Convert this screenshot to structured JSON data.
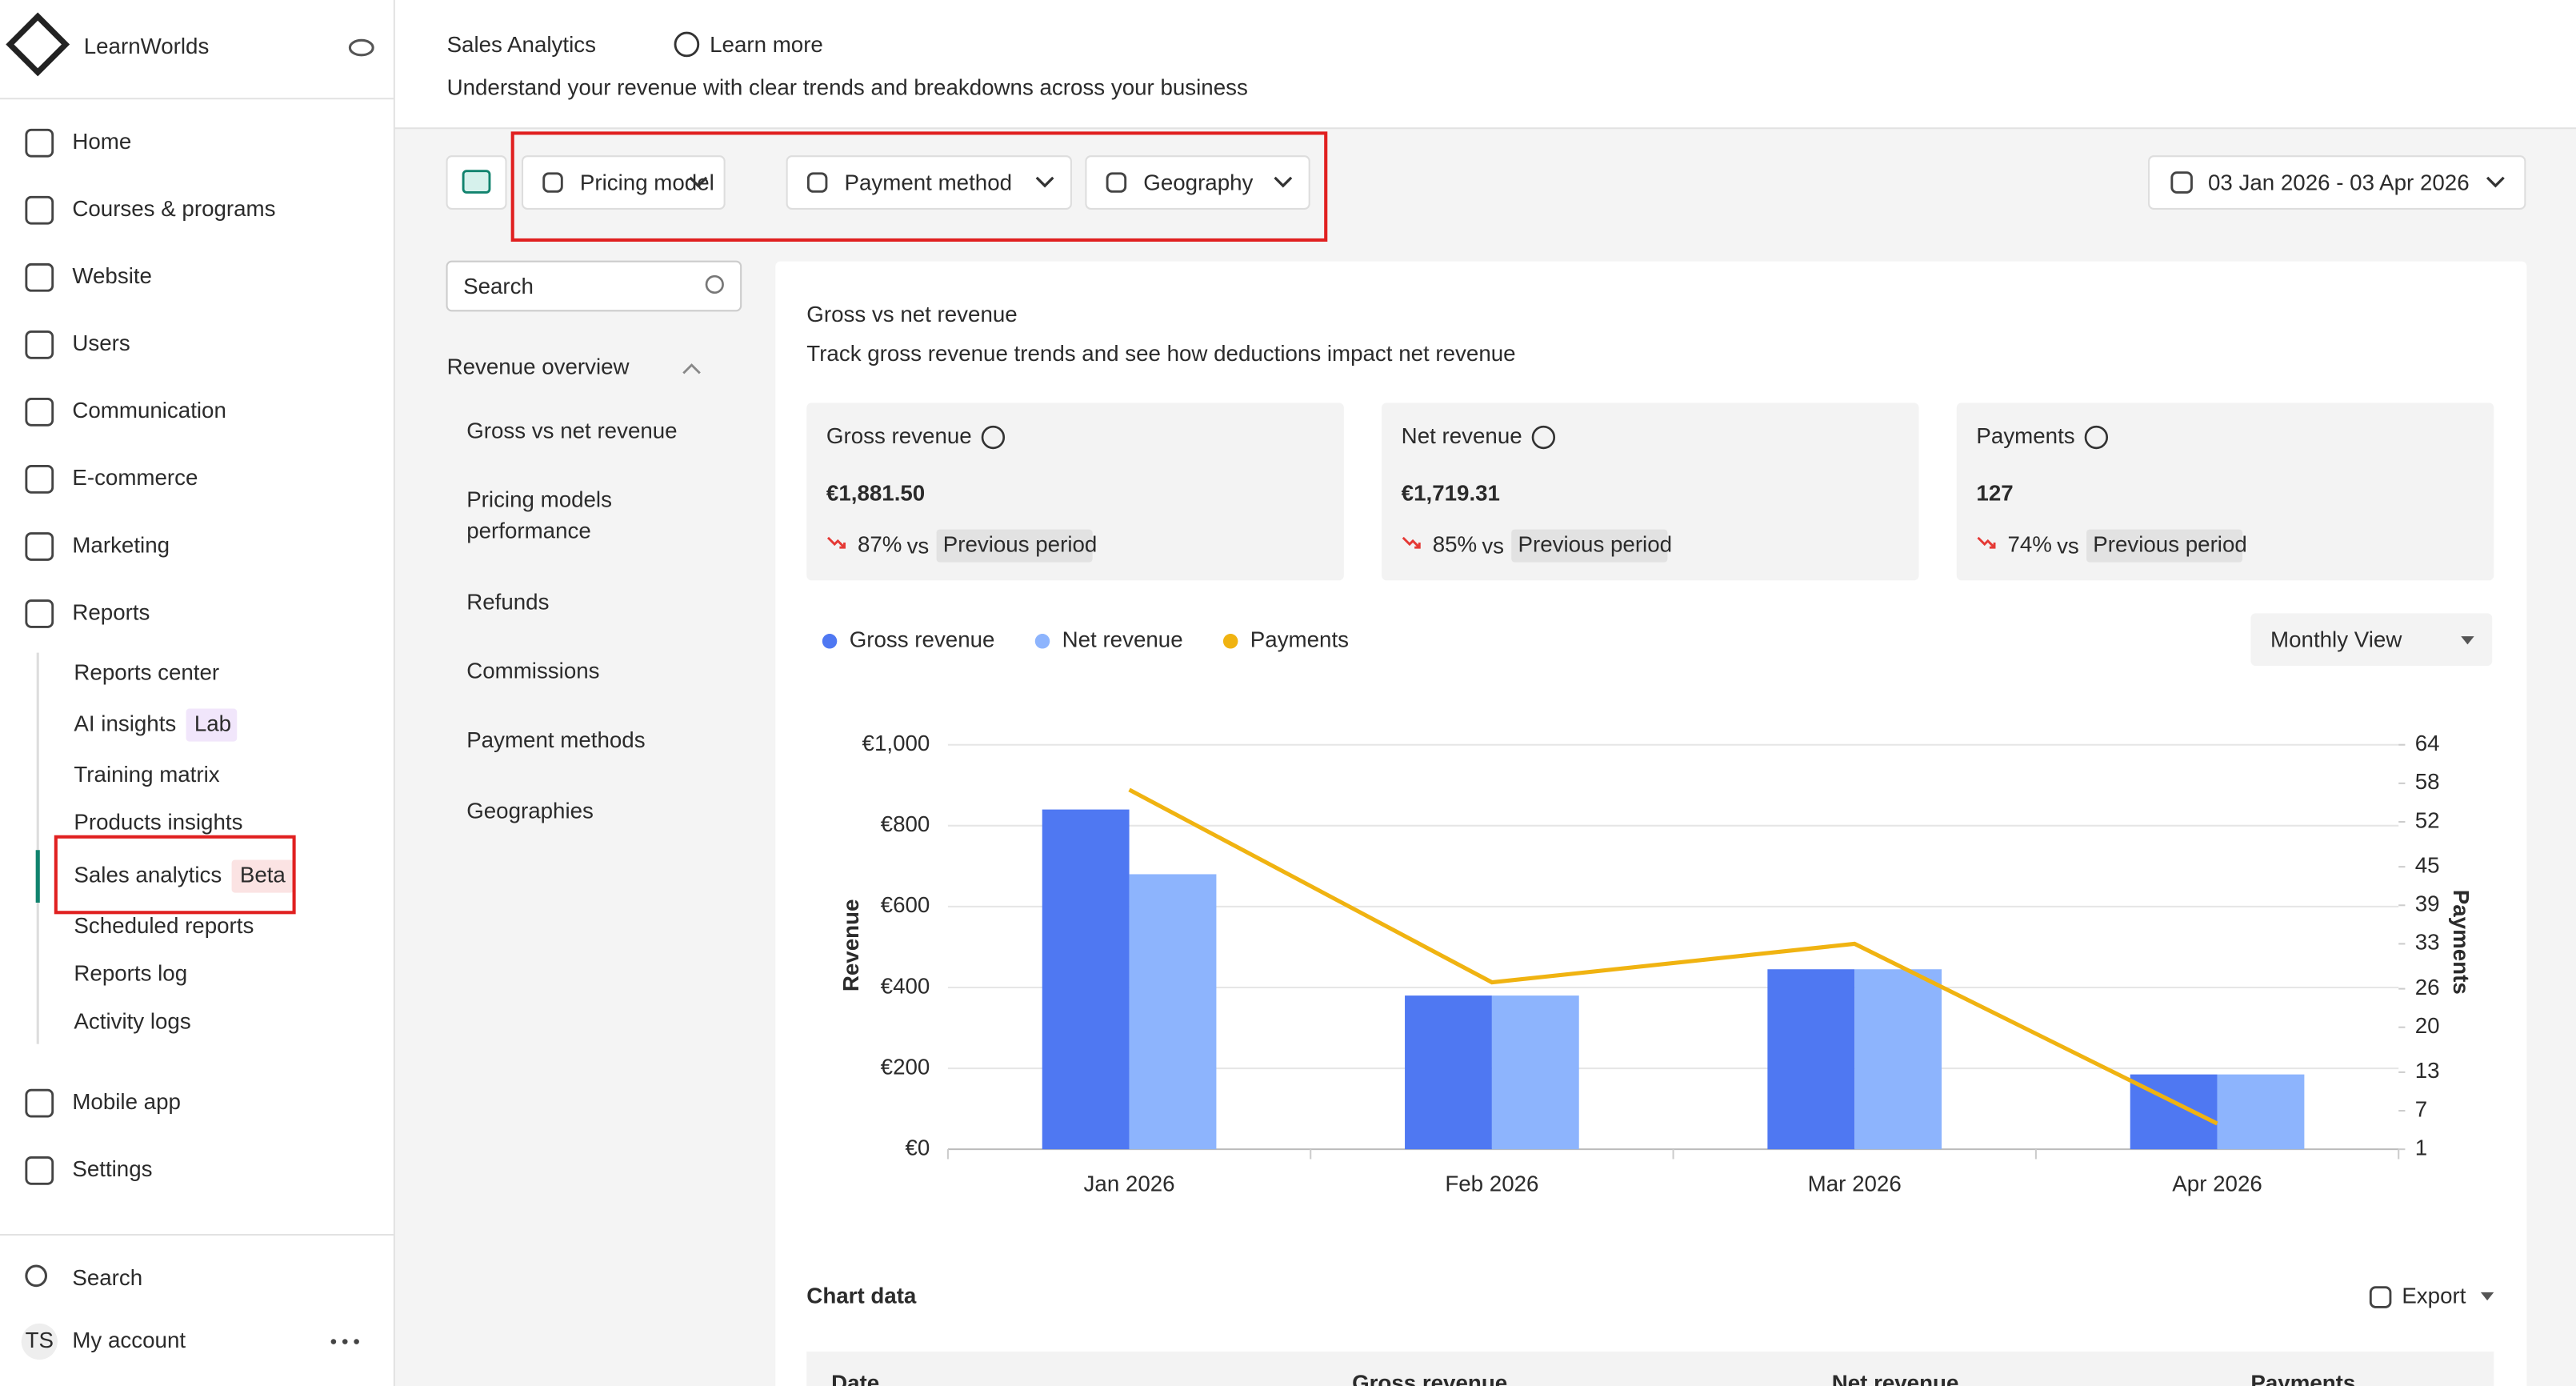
{
  "sidebar": {
    "brand": "LearnWorlds",
    "nav": [
      "Home",
      "Courses & programs",
      "Website",
      "Users",
      "Communication",
      "E-commerce",
      "Marketing",
      "Reports"
    ],
    "reports_sub": [
      {
        "label": "Reports center"
      },
      {
        "label": "AI insights",
        "badge": "Lab"
      },
      {
        "label": "Training matrix"
      },
      {
        "label": "Products insights"
      },
      {
        "label": "Sales analytics",
        "badge": "Beta"
      },
      {
        "label": "Scheduled reports"
      },
      {
        "label": "Reports log"
      },
      {
        "label": "Activity logs"
      }
    ],
    "bottom_nav": [
      "Mobile app",
      "Settings"
    ],
    "footer": [
      "Search",
      "My account"
    ],
    "avatar": "TS"
  },
  "header": {
    "title": "Sales Analytics",
    "learn_more": "Learn more",
    "subtitle": "Understand your revenue with clear trends and breakdowns across your business"
  },
  "filters": [
    "Pricing model",
    "Payment method",
    "Geography"
  ],
  "date_range": "03 Jan 2026 - 03 Apr 2026",
  "subnav": {
    "search_placeholder": "Search",
    "section": "Revenue overview",
    "items": [
      "Gross vs net revenue",
      "Pricing models performance",
      "Refunds",
      "Commissions",
      "Payment methods",
      "Geographies"
    ]
  },
  "card": {
    "title": "Gross vs net revenue",
    "subtitle": "Track gross revenue trends and see how deductions impact net revenue"
  },
  "kpis": [
    {
      "label": "Gross revenue",
      "value": "€1,881.50",
      "change": "87%",
      "vs": "vs",
      "compare": "Previous period"
    },
    {
      "label": "Net revenue",
      "value": "€1,719.31",
      "change": "85%",
      "vs": "vs",
      "compare": "Previous period"
    },
    {
      "label": "Payments",
      "value": "127",
      "change": "74%",
      "vs": "vs",
      "compare": "Previous period"
    }
  ],
  "view_select": "Monthly View",
  "chart_data": {
    "type": "bar",
    "categories": [
      "Jan 2026",
      "Feb 2026",
      "Mar 2026",
      "Apr 2026"
    ],
    "series": [
      {
        "name": "Gross revenue",
        "color": "#4f78f2",
        "type": "bar",
        "values": [
          840,
          380,
          445,
          185
        ]
      },
      {
        "name": "Net revenue",
        "color": "#8db4fd",
        "type": "bar",
        "values": [
          680,
          380,
          445,
          185
        ]
      },
      {
        "name": "Payments",
        "color": "#f0b311",
        "type": "line",
        "axis": "y2",
        "values": [
          57,
          27,
          33,
          5
        ]
      }
    ],
    "ylabel": "Revenue",
    "y2label": "Payments",
    "ylim": [
      0,
      1000
    ],
    "yticks": [
      {
        "value": 0,
        "label": "€0"
      },
      {
        "value": 200,
        "label": "€200"
      },
      {
        "value": 400,
        "label": "€400"
      },
      {
        "value": 600,
        "label": "€600"
      },
      {
        "value": 800,
        "label": "€800"
      },
      {
        "value": 1000,
        "label": "€1,000"
      }
    ],
    "y2lim": [
      1,
      64
    ],
    "y2ticks": [
      1,
      7,
      13,
      20,
      26,
      33,
      39,
      45,
      52,
      58,
      64
    ],
    "grid": true
  },
  "table": {
    "title": "Chart data",
    "export": "Export",
    "columns": [
      "Date",
      "Gross revenue",
      "Net revenue",
      "Payments"
    ]
  }
}
